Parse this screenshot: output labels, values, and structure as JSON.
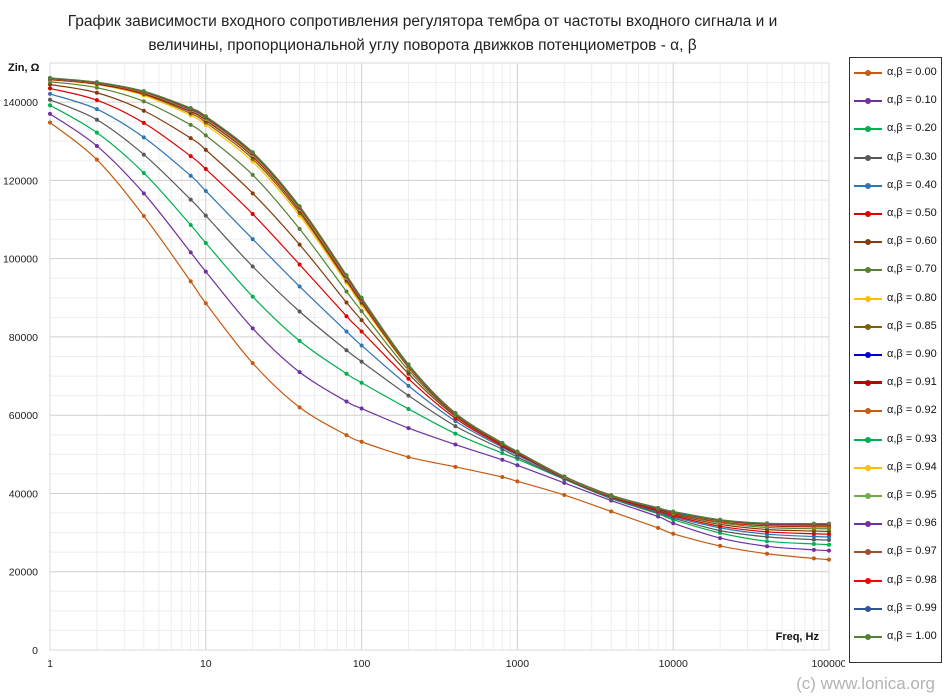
{
  "title_lines": [
    "График зависимости входного сопротивления регулятора тембра от частоты входного сигнала и и",
    "величины, пропорциональной углу поворота движков потенциометров - α, β"
  ],
  "watermark": "(c) www.lonica.org",
  "chart_data": {
    "type": "line",
    "title": "График зависимости входного сопротивления регулятора тембра от частоты входного сигнала и и величины, пропорциональной углу поворота движков потенциометров - α, β",
    "xlabel": "Freq, Hz",
    "ylabel": "Zin, Ω",
    "xscale": "log",
    "xlim": [
      1,
      100000
    ],
    "ylim": [
      0,
      150000
    ],
    "xticks": [
      1,
      10,
      100,
      1000,
      10000,
      100000
    ],
    "xtick_labels": [
      "1",
      "10",
      "100",
      "1000",
      "10000",
      "100000"
    ],
    "yticks": [
      0,
      20000,
      40000,
      60000,
      80000,
      100000,
      120000,
      140000
    ],
    "ytick_labels": [
      "0",
      "20000",
      "40000",
      "60000",
      "80000",
      "100000",
      "120000",
      "140000"
    ],
    "grid": true,
    "legend_position": "right",
    "x": [
      1,
      2,
      4,
      8,
      10,
      20,
      40,
      80,
      100,
      200,
      400,
      800,
      1000,
      2000,
      4000,
      8000,
      10000,
      20000,
      40000,
      80000,
      100000
    ],
    "series": [
      {
        "name": "α,β = 0.00",
        "color": "#c55a11",
        "values": [
          134800,
          125300,
          110900,
          94200,
          88600,
          73300,
          62000,
          54900,
          53200,
          49300,
          46800,
          44200,
          43100,
          39600,
          35400,
          31200,
          29700,
          26600,
          24600,
          23400,
          23100
        ]
      },
      {
        "name": "α,β = 0.10",
        "color": "#7030a0",
        "values": [
          137000,
          128800,
          116700,
          101600,
          96700,
          82200,
          71000,
          63500,
          61700,
          56700,
          52500,
          48600,
          47200,
          42700,
          38200,
          34100,
          32400,
          28600,
          26500,
          25600,
          25400
        ]
      },
      {
        "name": "α,β = 0.20",
        "color": "#00b050",
        "values": [
          139200,
          132200,
          121900,
          108600,
          104000,
          90300,
          79000,
          70600,
          68300,
          61600,
          55300,
          50300,
          48800,
          43600,
          38700,
          34800,
          33300,
          29900,
          27800,
          27100,
          26900
        ]
      },
      {
        "name": "α,β = 0.30",
        "color": "#595959",
        "values": [
          140600,
          135500,
          126600,
          115100,
          111000,
          98000,
          86500,
          76600,
          73700,
          65000,
          57200,
          51300,
          49300,
          43700,
          38800,
          35000,
          33700,
          30500,
          28900,
          28200,
          28100
        ]
      },
      {
        "name": "α,β = 0.40",
        "color": "#2e75b6",
        "values": [
          142100,
          138200,
          131000,
          121200,
          117300,
          105000,
          92900,
          81400,
          77800,
          67500,
          58500,
          51800,
          49800,
          43900,
          39000,
          35300,
          34000,
          31200,
          29600,
          29000,
          28900
        ]
      },
      {
        "name": "α,β = 0.50",
        "color": "#e00000",
        "values": [
          143500,
          140500,
          134700,
          126200,
          122900,
          111400,
          98500,
          85300,
          81400,
          69300,
          59200,
          52100,
          50100,
          44000,
          39100,
          35500,
          34300,
          31600,
          30200,
          29700,
          29600
        ]
      },
      {
        "name": "α,β = 0.60",
        "color": "#843c0c",
        "values": [
          144500,
          142400,
          137800,
          130800,
          127800,
          116700,
          103600,
          88800,
          84300,
          70600,
          59700,
          52400,
          50200,
          44100,
          39200,
          35700,
          34600,
          32100,
          30800,
          30400,
          30300
        ]
      },
      {
        "name": "α,β = 0.70",
        "color": "#548235",
        "values": [
          145200,
          143700,
          140200,
          134200,
          131500,
          121400,
          107600,
          91600,
          86600,
          71500,
          60000,
          52600,
          50400,
          44200,
          39300,
          35900,
          34800,
          32500,
          31300,
          31000,
          31000
        ]
      },
      {
        "name": "α,β = 0.80",
        "color": "#ffc000",
        "values": [
          145700,
          144500,
          141700,
          136600,
          134200,
          124800,
          111000,
          93800,
          88200,
          72200,
          60200,
          52700,
          50500,
          44200,
          39400,
          36100,
          35000,
          32700,
          31700,
          31400,
          31400
        ]
      },
      {
        "name": "α,β = 0.85",
        "color": "#7f6000",
        "values": [
          145800,
          144600,
          142000,
          137100,
          134800,
          125500,
          111700,
          94300,
          88700,
          72400,
          60300,
          52700,
          50500,
          44200,
          39400,
          36100,
          35100,
          32800,
          31800,
          31500,
          31500
        ]
      },
      {
        "name": "α,β = 0.90",
        "color": "#0000cc",
        "values": [
          145900,
          144800,
          142300,
          137600,
          135400,
          126200,
          112400,
          94800,
          89100,
          72500,
          60300,
          52700,
          50500,
          44200,
          39400,
          36100,
          35100,
          32900,
          31900,
          31700,
          31600
        ]
      },
      {
        "name": "α,β = 0.91",
        "color": "#c00000",
        "bold": true,
        "values": [
          145900,
          144800,
          142300,
          137700,
          135500,
          126300,
          112500,
          94900,
          89200,
          72500,
          60300,
          52700,
          50500,
          44200,
          39400,
          36100,
          35100,
          32900,
          31900,
          31700,
          31700
        ]
      },
      {
        "name": "α,β = 0.92",
        "color": "#c55a11",
        "values": [
          145950,
          144850,
          142400,
          137800,
          135600,
          126400,
          112600,
          95000,
          89300,
          72600,
          60300,
          52700,
          50500,
          44200,
          39400,
          36200,
          35100,
          32900,
          32000,
          31700,
          31700
        ]
      },
      {
        "name": "α,β = 0.93",
        "color": "#00b050",
        "values": [
          145950,
          144850,
          142450,
          137900,
          135700,
          126500,
          112700,
          95100,
          89400,
          72600,
          60400,
          52700,
          50500,
          44200,
          39400,
          36200,
          35200,
          33000,
          32000,
          31800,
          31800
        ]
      },
      {
        "name": "α,β = 0.94",
        "color": "#ffc000",
        "values": [
          146000,
          144900,
          142500,
          138000,
          135800,
          126600,
          112800,
          95200,
          89500,
          72700,
          60400,
          52800,
          50600,
          44200,
          39400,
          36200,
          35200,
          33000,
          32000,
          31800,
          31800
        ]
      },
      {
        "name": "α,β = 0.95",
        "color": "#70ad47",
        "values": [
          146000,
          144900,
          142550,
          138050,
          135900,
          126700,
          112900,
          95300,
          89500,
          72700,
          60400,
          52800,
          50600,
          44200,
          39400,
          36200,
          35200,
          33000,
          32100,
          31900,
          31900
        ]
      },
      {
        "name": "α,β = 0.96",
        "color": "#7030a0",
        "values": [
          146050,
          144950,
          142600,
          138100,
          136000,
          126800,
          113000,
          95400,
          89600,
          72800,
          60400,
          52800,
          50600,
          44300,
          39500,
          36200,
          35200,
          33100,
          32100,
          31900,
          31900
        ]
      },
      {
        "name": "α,β = 0.97",
        "color": "#a0522d",
        "values": [
          146050,
          145000,
          142650,
          138200,
          136100,
          126900,
          113100,
          95500,
          89700,
          72800,
          60500,
          52800,
          50600,
          44300,
          39500,
          36300,
          35300,
          33100,
          32200,
          32000,
          32000
        ]
      },
      {
        "name": "α,β = 0.98",
        "color": "#ff0000",
        "values": [
          146100,
          145000,
          142700,
          138300,
          136200,
          127000,
          113200,
          95600,
          89800,
          72900,
          60500,
          52800,
          50600,
          44300,
          39500,
          36300,
          35300,
          33200,
          32200,
          32100,
          32100
        ]
      },
      {
        "name": "α,β = 0.99",
        "color": "#2f5597",
        "values": [
          146100,
          145050,
          142750,
          138400,
          136300,
          127100,
          113300,
          95700,
          89900,
          72900,
          60500,
          52900,
          50700,
          44300,
          39500,
          36300,
          35300,
          33200,
          32300,
          32200,
          32200
        ]
      },
      {
        "name": "α,β = 1.00",
        "color": "#548235",
        "values": [
          146200,
          145100,
          142800,
          138500,
          136400,
          127200,
          113400,
          95800,
          90000,
          73000,
          60500,
          52900,
          50700,
          44300,
          39500,
          36300,
          35400,
          33300,
          32400,
          32300,
          32300
        ]
      }
    ]
  }
}
